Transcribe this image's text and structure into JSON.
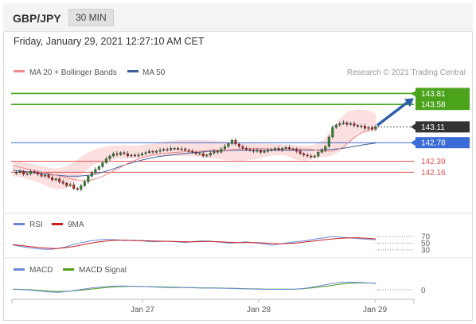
{
  "header": {
    "symbol": "GBP/JPY",
    "timeframe": "30 MIN"
  },
  "datetime": "Friday, January 29, 2021 12:27:10 AM CET",
  "colors": {
    "ma20": "#f08b8b",
    "ma50": "#3d5f9a",
    "band_fill": "#fbd5d5",
    "bull": "#2e8b2e",
    "bear": "#d22020",
    "resistance": "#4aa31a",
    "current": "#333333",
    "pivot": "#3a6bd6",
    "support": "#e05050",
    "rsi": "#6b87d8",
    "rsi_ma": "#cc2020",
    "macd": "#6b87d8",
    "macd_signal": "#4aa31a"
  },
  "chart_data": [
    {
      "type": "line",
      "title": "GBP/JPY",
      "legend": [
        {
          "name": "MA 20 + Bollinger Bands",
          "color": "#f08b8b"
        },
        {
          "name": "MA 50",
          "color": "#3d5f9a"
        }
      ],
      "credit": "Research © 2021 Trading Central",
      "x_ticks": [
        "Jan 27",
        "Jan 28",
        "Jan 29"
      ],
      "ylim": [
        141.4,
        144.1
      ],
      "price_series": [
        142.14,
        142.16,
        142.18,
        142.12,
        142.13,
        142.18,
        142.15,
        142.12,
        142.08,
        142.1,
        142.05,
        142.0,
        142.02,
        141.96,
        141.93,
        141.88,
        141.9,
        141.82,
        141.8,
        141.88,
        141.96,
        142.08,
        142.15,
        142.22,
        142.28,
        142.36,
        142.44,
        142.5,
        142.55,
        142.53,
        142.57,
        142.55,
        142.5,
        142.52,
        142.5,
        142.52,
        142.55,
        142.57,
        142.6,
        142.58,
        142.6,
        142.62,
        142.64,
        142.63,
        142.66,
        142.66,
        142.64,
        142.65,
        142.62,
        142.6,
        142.58,
        142.55,
        142.55,
        142.5,
        142.52,
        142.56,
        142.6,
        142.58,
        142.65,
        142.7,
        142.76,
        142.83,
        142.75,
        142.7,
        142.66,
        142.64,
        142.62,
        142.6,
        142.62,
        142.58,
        142.6,
        142.62,
        142.64,
        142.66,
        142.63,
        142.66,
        142.68,
        142.65,
        142.64,
        142.6,
        142.55,
        142.52,
        142.5,
        142.48,
        142.5,
        142.58,
        142.62,
        142.7,
        142.9,
        143.1,
        143.15,
        143.18,
        143.2,
        143.16,
        143.18,
        143.14,
        143.12,
        143.13,
        143.08,
        143.1,
        143.06,
        143.11
      ],
      "ma20": [
        142.3,
        142.27,
        142.24,
        142.21,
        142.18,
        142.15,
        142.12,
        142.09,
        142.06,
        142.03,
        142.0,
        141.98,
        141.99,
        142.02,
        142.07,
        142.13,
        142.2,
        142.27,
        142.34,
        142.4,
        142.45,
        142.49,
        142.52,
        142.54,
        142.56,
        142.57,
        142.58,
        142.59,
        142.6,
        142.6,
        142.61,
        142.62,
        142.62,
        142.62,
        142.63,
        142.64,
        142.65,
        142.66,
        142.66,
        142.66,
        142.65,
        142.64,
        142.64,
        142.65,
        142.65,
        142.65,
        142.65,
        142.64,
        142.62,
        142.6,
        142.6,
        142.63,
        142.7,
        142.82,
        142.92,
        143.0,
        143.05,
        143.1
      ],
      "bb_upper": [
        142.4,
        142.38,
        142.34,
        142.3,
        142.26,
        142.24,
        142.28,
        142.38,
        142.52,
        142.62,
        142.68,
        142.71,
        142.72,
        142.72,
        142.72,
        142.74,
        142.76,
        142.79,
        142.82,
        142.84,
        142.84,
        142.84,
        142.83,
        142.82,
        142.8,
        142.78,
        142.77,
        142.77,
        142.76,
        142.76,
        142.75,
        142.74,
        142.73,
        142.72,
        142.73,
        142.82,
        143.05,
        143.3,
        143.45,
        143.48,
        143.46,
        143.4
      ],
      "bb_lower": [
        142.08,
        142.05,
        142.0,
        141.94,
        141.86,
        141.8,
        141.82,
        141.95,
        142.15,
        142.3,
        142.38,
        142.42,
        142.44,
        142.45,
        142.46,
        142.48,
        142.5,
        142.5,
        142.5,
        142.5,
        142.5,
        142.48,
        142.46,
        142.44,
        142.42,
        142.4,
        142.4,
        142.42,
        142.46,
        142.5,
        142.52,
        142.5,
        142.42,
        142.4,
        142.45,
        142.48,
        142.5,
        142.6,
        142.76,
        142.95,
        143.0,
        143.02
      ],
      "ma50": [
        142.2,
        142.18,
        142.15,
        142.12,
        142.1,
        142.08,
        142.08,
        142.1,
        142.15,
        142.22,
        142.3,
        142.37,
        142.43,
        142.48,
        142.51,
        142.54,
        142.56,
        142.58,
        142.6,
        142.61,
        142.62,
        142.62,
        142.62,
        142.62,
        142.62,
        142.62,
        142.62,
        142.62,
        142.63,
        142.64,
        142.66,
        142.7,
        142.74,
        142.77
      ],
      "levels": [
        {
          "label": "143.81",
          "value": 143.81,
          "kind": "resistance"
        },
        {
          "label": "143.58",
          "value": 143.58,
          "kind": "resistance"
        },
        {
          "label": "143.11",
          "value": 143.11,
          "kind": "current"
        },
        {
          "label": "142.78",
          "value": 142.78,
          "kind": "pivot"
        },
        {
          "label": "142.39",
          "value": 142.39,
          "kind": "support"
        },
        {
          "label": "142.16",
          "value": 142.16,
          "kind": "support"
        }
      ]
    },
    {
      "type": "line",
      "title": "RSI",
      "series": [
        {
          "name": "RSI",
          "values": [
            45,
            40,
            36,
            33,
            31,
            33,
            38,
            46,
            52,
            57,
            60,
            62,
            60,
            58,
            59,
            57,
            54,
            55,
            56,
            54,
            52,
            55,
            57,
            56,
            53,
            50,
            52,
            54,
            51,
            48,
            44,
            48,
            52,
            55,
            58,
            63,
            66,
            70,
            68,
            66,
            64,
            62,
            60
          ]
        },
        {
          "name": "9MA",
          "values": [
            46,
            43,
            40,
            37,
            35,
            34,
            36,
            40,
            45,
            50,
            54,
            57,
            59,
            59,
            58,
            58,
            57,
            56,
            56,
            55,
            54,
            54,
            55,
            55,
            54,
            53,
            52,
            52,
            52,
            51,
            49,
            48,
            49,
            51,
            54,
            57,
            60,
            63,
            65,
            66,
            66,
            65,
            63
          ]
        }
      ],
      "y_ticks": [
        "70",
        "50",
        "30"
      ],
      "ylim": [
        20,
        80
      ]
    },
    {
      "type": "line",
      "title": "MACD",
      "series": [
        {
          "name": "MACD",
          "values": [
            0.02,
            0.01,
            -0.02,
            -0.06,
            -0.1,
            -0.12,
            -0.08,
            -0.02,
            0.04,
            0.1,
            0.14,
            0.17,
            0.18,
            0.17,
            0.16,
            0.14,
            0.12,
            0.11,
            0.1,
            0.1,
            0.09,
            0.08,
            0.08,
            0.07,
            0.06,
            0.05,
            0.04,
            0.03,
            0.02,
            0.02,
            0.02,
            0.03,
            0.06,
            0.12,
            0.2,
            0.28,
            0.34,
            0.36,
            0.35,
            0.33,
            0.3
          ]
        },
        {
          "name": "MACD Signal",
          "values": [
            0.03,
            0.02,
            0.0,
            -0.03,
            -0.06,
            -0.08,
            -0.07,
            -0.04,
            0.0,
            0.05,
            0.09,
            0.13,
            0.15,
            0.16,
            0.16,
            0.15,
            0.14,
            0.13,
            0.12,
            0.11,
            0.1,
            0.09,
            0.09,
            0.08,
            0.07,
            0.06,
            0.05,
            0.04,
            0.03,
            0.03,
            0.03,
            0.03,
            0.05,
            0.09,
            0.14,
            0.2,
            0.26,
            0.3,
            0.32,
            0.32,
            0.31
          ]
        }
      ],
      "y_ticks": [
        "0"
      ],
      "ylim": [
        -0.3,
        0.6
      ]
    }
  ]
}
